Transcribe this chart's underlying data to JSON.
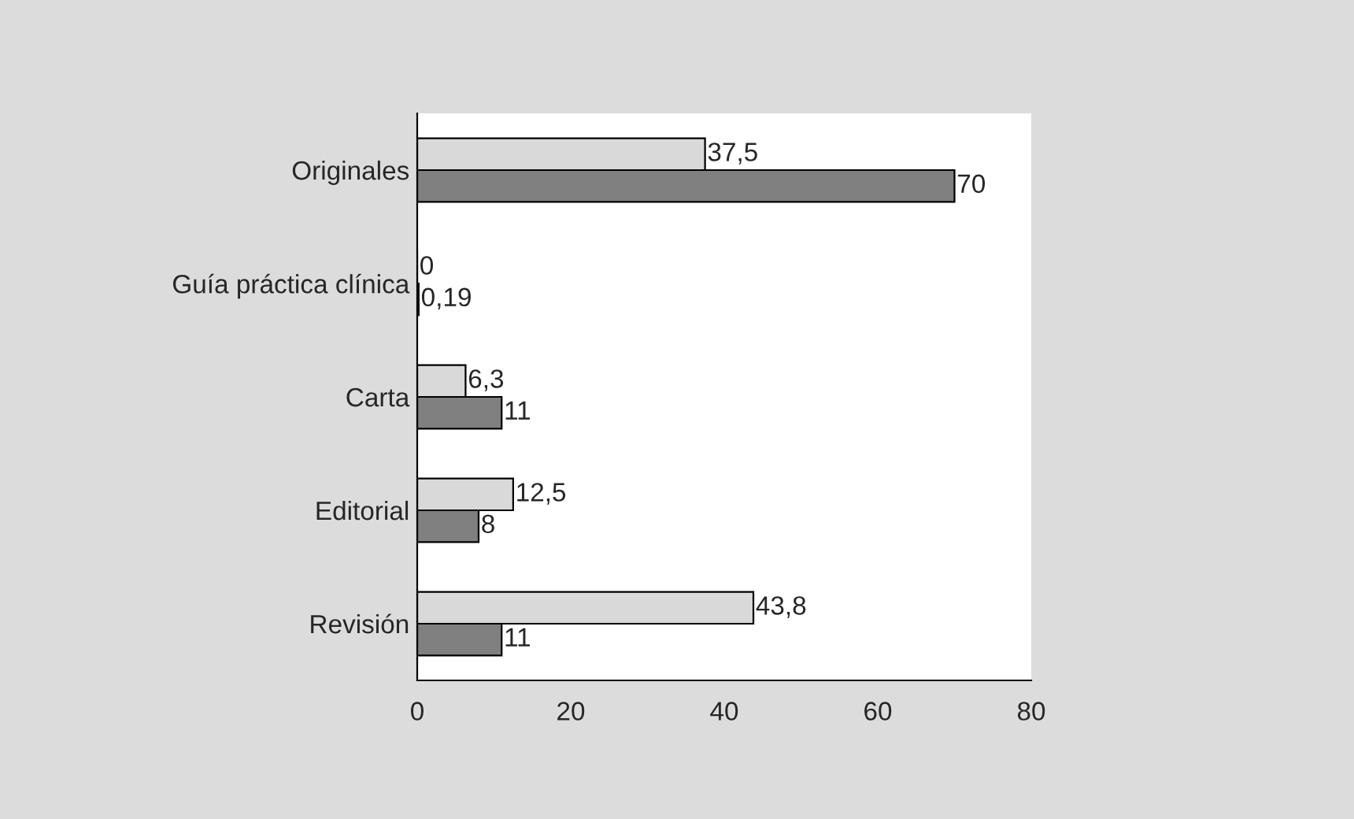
{
  "chart_data": {
    "type": "bar",
    "orientation": "horizontal",
    "categories": [
      "Originales",
      "Guía práctica clínica",
      "Carta",
      "Editorial",
      "Revisión"
    ],
    "series": [
      {
        "color": "#d9d9d9",
        "values": [
          37.5,
          0,
          6.3,
          12.5,
          43.8
        ],
        "value_labels": [
          "37,5",
          "0",
          "6,3",
          "12,5",
          "43,8"
        ]
      },
      {
        "color": "#808080",
        "values": [
          70,
          0.19,
          11,
          8,
          11
        ],
        "value_labels": [
          "70",
          "0,19",
          "11",
          "8",
          "11"
        ]
      }
    ],
    "xlim": [
      0,
      80
    ],
    "xticks": [
      0,
      20,
      40,
      60,
      80
    ],
    "grid": false,
    "legend": false
  }
}
